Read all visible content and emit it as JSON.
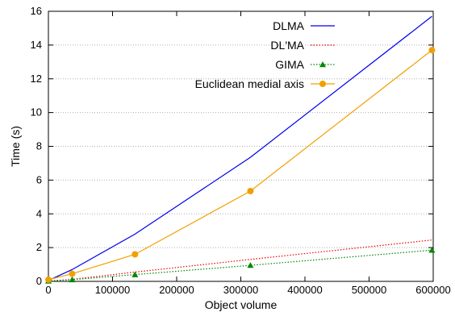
{
  "chart_data": {
    "type": "line",
    "title": "",
    "xlabel": "Object volume",
    "ylabel": "Time (s)",
    "xlim": [
      0,
      600000
    ],
    "ylim": [
      0,
      16
    ],
    "xticks": [
      0,
      100000,
      200000,
      300000,
      400000,
      500000,
      600000
    ],
    "yticks": [
      0,
      2,
      4,
      6,
      8,
      10,
      12,
      14,
      16
    ],
    "grid": true,
    "legend_position": "top-right",
    "series": [
      {
        "name": "DLMA",
        "color": "#0000ee",
        "style": "solid",
        "marker": "none",
        "x": [
          0,
          37000,
          135000,
          315000,
          598000
        ],
        "y": [
          0.05,
          0.7,
          2.8,
          7.35,
          15.7
        ]
      },
      {
        "name": "DL'MA",
        "color": "#ee0000",
        "style": "dotted",
        "marker": "none",
        "x": [
          0,
          37000,
          135000,
          315000,
          598000
        ],
        "y": [
          0.02,
          0.12,
          0.55,
          1.3,
          2.45
        ]
      },
      {
        "name": "GIMA",
        "color": "#008800",
        "style": "dotted",
        "marker": "triangle",
        "x": [
          0,
          37000,
          135000,
          315000,
          598000
        ],
        "y": [
          0.02,
          0.1,
          0.4,
          0.95,
          1.85
        ]
      },
      {
        "name": "Euclidean medial axis",
        "color": "#f0a000",
        "style": "solid",
        "marker": "circle",
        "x": [
          0,
          37000,
          135000,
          315000,
          598000
        ],
        "y": [
          0.1,
          0.45,
          1.6,
          5.35,
          13.7
        ]
      }
    ]
  }
}
